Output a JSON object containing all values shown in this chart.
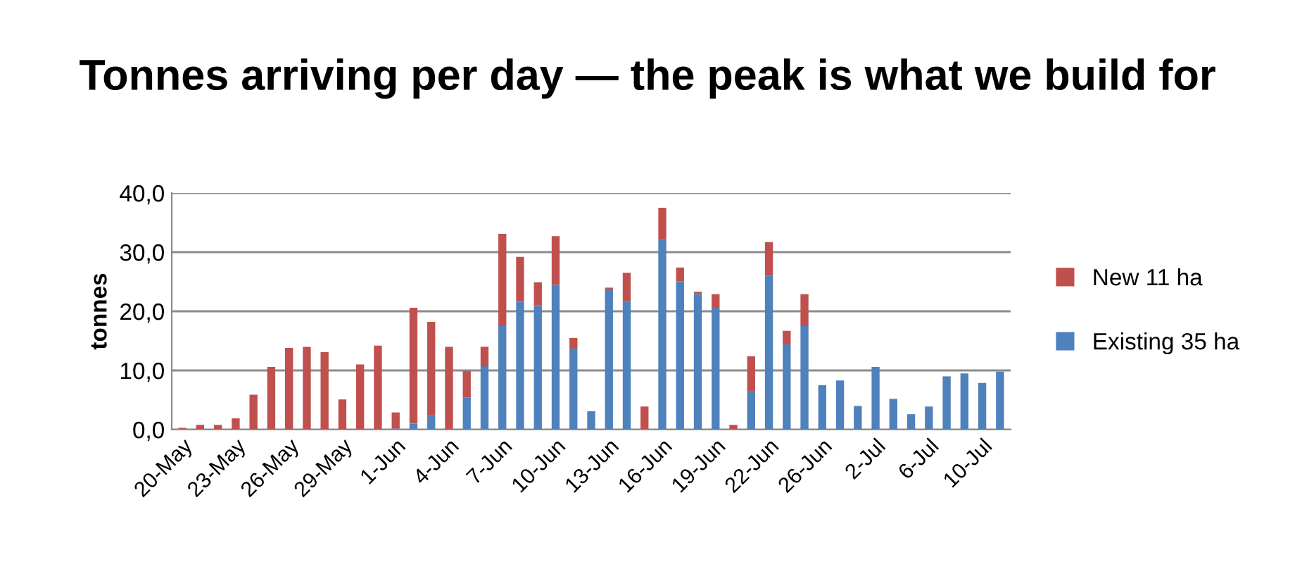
{
  "chart_data": {
    "type": "bar",
    "title": "Tonnes arriving per day — the peak is what we build for",
    "ylabel": "tonnes",
    "stacked": true,
    "categories": [
      "20-May",
      null,
      null,
      "23-May",
      null,
      null,
      "26-May",
      null,
      null,
      "29-May",
      null,
      null,
      "1-Jun",
      null,
      null,
      "4-Jun",
      null,
      null,
      "7-Jun",
      null,
      null,
      "10-Jun",
      null,
      null,
      "13-Jun",
      null,
      null,
      "16-Jun",
      null,
      null,
      "19-Jun",
      null,
      null,
      "22-Jun",
      null,
      null,
      "26-Jun",
      null,
      null,
      "2-Jul",
      null,
      null,
      "6-Jul",
      null,
      null,
      "10-Jul",
      null
    ],
    "series": [
      {
        "name": "Existing 35 ha",
        "color": "#4f81bd",
        "values": [
          0,
          0,
          0,
          0,
          0,
          0,
          0,
          0,
          0,
          0,
          0,
          0,
          0.2,
          1.0,
          2.3,
          0,
          5.4,
          10.7,
          17.5,
          21.6,
          21.0,
          24.5,
          13.7,
          3.1,
          23.7,
          21.7,
          0,
          32.1,
          25.1,
          22.9,
          20.6,
          0,
          6.4,
          26.0,
          14.4,
          17.5,
          7.5,
          8.3,
          4.0,
          10.6,
          5.2,
          2.6,
          3.9,
          9.0,
          9.5,
          7.9,
          9.8
        ]
      },
      {
        "name": "New 11 ha",
        "color": "#c0504d",
        "values": [
          0.3,
          0.8,
          0.8,
          1.9,
          5.9,
          10.6,
          13.8,
          14.0,
          13.1,
          5.1,
          11.0,
          14.2,
          2.7,
          19.6,
          15.9,
          14.0,
          4.5,
          3.3,
          15.6,
          7.6,
          3.9,
          8.2,
          1.8,
          0,
          0.3,
          4.8,
          3.9,
          5.4,
          2.3,
          0.4,
          2.3,
          0.8,
          6.0,
          5.7,
          2.3,
          5.4,
          0,
          0,
          0,
          0,
          0,
          0,
          0,
          0,
          0,
          0,
          0
        ]
      }
    ],
    "ylim": [
      0,
      40
    ],
    "yticks": [
      {
        "value": 0,
        "label": "0,0"
      },
      {
        "value": 10,
        "label": "10,0"
      },
      {
        "value": 20,
        "label": "20,0"
      },
      {
        "value": 30,
        "label": "30,0"
      },
      {
        "value": 40,
        "label": "40,0"
      }
    ],
    "grid": "y",
    "legend": "right"
  }
}
